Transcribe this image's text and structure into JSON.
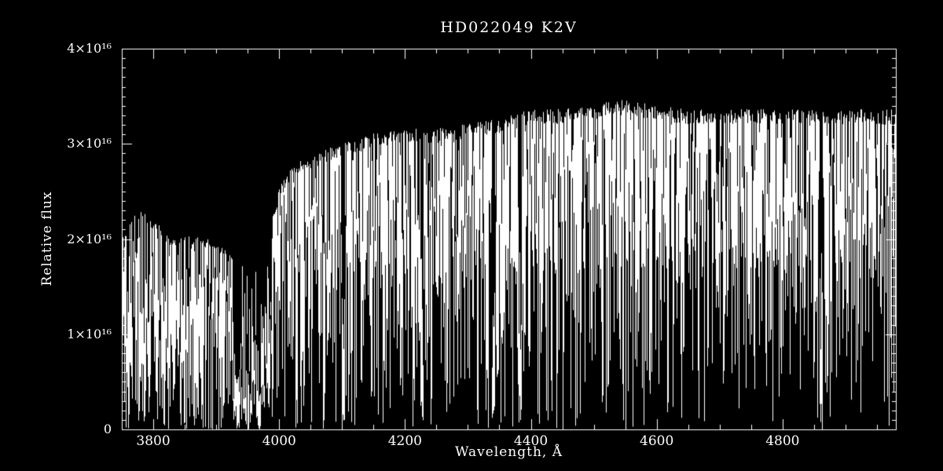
{
  "figure": {
    "background_color": "#000000",
    "foreground_color": "#ffffff"
  },
  "chart_data": {
    "type": "line",
    "subtype": "stellar-spectrum",
    "title": "HD022049  K2V",
    "xlabel": "Wavelength, Å",
    "ylabel": "Relative flux",
    "xlim": [
      3750,
      4980
    ],
    "ylim": [
      0,
      4
    ],
    "y_unit_factor": "1e16",
    "grid": false,
    "legend": false,
    "xticks": {
      "values": [
        3800,
        4000,
        4200,
        4400,
        4600,
        4800
      ],
      "labels": [
        "3800",
        "4000",
        "4200",
        "4400",
        "4600",
        "4800"
      ],
      "minor_step": 50
    },
    "yticks": {
      "values": [
        0,
        1,
        2,
        3,
        4
      ],
      "labels": [
        "0",
        "1×10¹⁶",
        "2×10¹⁶",
        "3×10¹⁶",
        "4×10¹⁶"
      ],
      "minor_step": 0.1
    },
    "series": [
      {
        "name": "HD022049 relative flux",
        "color": "#ffffff",
        "continuum_envelope": {
          "wavelength": [
            3750,
            3770,
            3790,
            3810,
            3830,
            3850,
            3870,
            3890,
            3910,
            3925,
            3940,
            3960,
            3980,
            4000,
            4020,
            4040,
            4060,
            4080,
            4100,
            4150,
            4200,
            4250,
            4300,
            4350,
            4400,
            4450,
            4500,
            4550,
            4600,
            4650,
            4700,
            4750,
            4800,
            4850,
            4900,
            4950,
            4980
          ],
          "flux_1e16": [
            2.0,
            2.3,
            2.2,
            2.1,
            1.95,
            2.0,
            2.0,
            1.95,
            1.9,
            1.8,
            1.7,
            1.7,
            2.0,
            2.5,
            2.7,
            2.8,
            2.85,
            2.9,
            2.95,
            3.05,
            3.1,
            3.1,
            3.15,
            3.2,
            3.3,
            3.3,
            3.35,
            3.4,
            3.35,
            3.3,
            3.3,
            3.3,
            3.3,
            3.3,
            3.3,
            3.3,
            3.3
          ]
        },
        "strong_absorption_lines": [
          3934,
          3968,
          4101,
          4227,
          4340,
          4383,
          4861
        ],
        "depressed_band": [
          3925,
          3985
        ]
      }
    ]
  }
}
